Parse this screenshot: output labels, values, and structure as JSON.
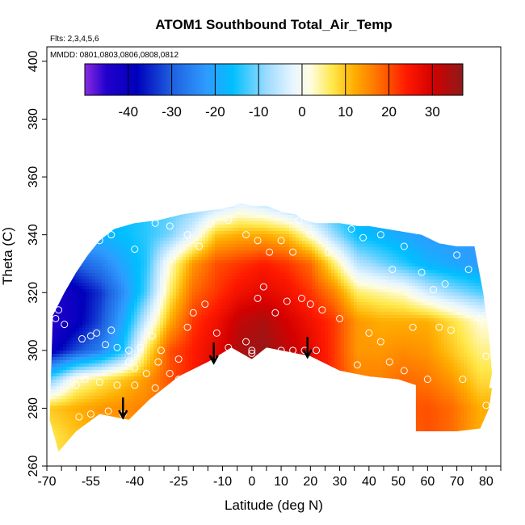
{
  "chart_data": {
    "type": "heatmap",
    "title": "ATOM1 Southbound Total_Air_Temp",
    "subtitle_flights": "Flts: 2,3,4,5,6",
    "subtitle_dates": "MMDD: 0801,0803,0806,0808,0812",
    "xlabel": "Latitude (deg N)",
    "ylabel": "Theta (C)",
    "xlim": [
      -70,
      85
    ],
    "ylim": [
      260,
      405
    ],
    "x_ticks": [
      -70,
      -55,
      -40,
      -25,
      -10,
      0,
      10,
      20,
      30,
      40,
      50,
      60,
      70,
      80
    ],
    "x_minor_ticks": [
      -65,
      -60,
      -50,
      -45,
      -35,
      -30,
      -20,
      -15,
      -5,
      5,
      15,
      25,
      35,
      45,
      55,
      65,
      75,
      85
    ],
    "y_ticks": [
      260,
      280,
      300,
      320,
      340,
      360,
      380,
      400
    ],
    "colorbar": {
      "range": [
        -50,
        37
      ],
      "ticks": [
        -40,
        -30,
        -20,
        -10,
        0,
        10,
        20,
        30
      ],
      "stops": [
        {
          "v": -50,
          "color": "#8a2be2"
        },
        {
          "v": -45,
          "color": "#2200cc"
        },
        {
          "v": -38,
          "color": "#0000bb"
        },
        {
          "v": -30,
          "color": "#1e60e0"
        },
        {
          "v": -22,
          "color": "#2e9bff"
        },
        {
          "v": -16,
          "color": "#00bfff"
        },
        {
          "v": -8,
          "color": "#9fdcff"
        },
        {
          "v": -2,
          "color": "#e8f6ff"
        },
        {
          "v": 2,
          "color": "#fffde0"
        },
        {
          "v": 7,
          "color": "#ffe84a"
        },
        {
          "v": 12,
          "color": "#ffae00"
        },
        {
          "v": 18,
          "color": "#ff6a00"
        },
        {
          "v": 24,
          "color": "#ff1a00"
        },
        {
          "v": 30,
          "color": "#d40000"
        },
        {
          "v": 37,
          "color": "#8e1a1a"
        }
      ]
    },
    "field": {
      "x_grid": [
        -68,
        -60,
        -52,
        -44,
        -36,
        -28,
        -20,
        -12,
        -4,
        4,
        12,
        20,
        28,
        36,
        44,
        52,
        60,
        68,
        78
      ],
      "y_grid": [
        270,
        280,
        290,
        300,
        310,
        320,
        330,
        340,
        350
      ],
      "values": [
        [
          7,
          10,
          12,
          13,
          14,
          16,
          18,
          20,
          22,
          22,
          20,
          18,
          16,
          15,
          16,
          18,
          20,
          18,
          12
        ],
        [
          10,
          12,
          14,
          15,
          16,
          18,
          22,
          26,
          30,
          32,
          30,
          26,
          20,
          16,
          17,
          19,
          20,
          18,
          12
        ],
        [
          -10,
          2,
          6,
          10,
          14,
          20,
          24,
          30,
          34,
          35,
          32,
          28,
          22,
          16,
          16,
          18,
          17,
          14,
          8
        ],
        [
          -40,
          -32,
          -26,
          -15,
          6,
          20,
          24,
          28,
          34,
          36,
          32,
          28,
          22,
          14,
          14,
          15,
          14,
          10,
          5
        ],
        [
          -45,
          -40,
          -32,
          -20,
          -4,
          12,
          22,
          26,
          32,
          34,
          30,
          26,
          22,
          14,
          12,
          12,
          12,
          8,
          2
        ],
        [
          -45,
          -40,
          -34,
          -24,
          -12,
          6,
          18,
          22,
          26,
          28,
          26,
          22,
          16,
          6,
          4,
          2,
          -4,
          -8,
          -12
        ],
        [
          -36,
          -30,
          -26,
          -20,
          -14,
          2,
          14,
          20,
          22,
          24,
          22,
          18,
          6,
          -6,
          -10,
          -14,
          -18,
          -20,
          -22
        ],
        [
          -20,
          -18,
          -18,
          -16,
          -14,
          -10,
          -2,
          10,
          12,
          12,
          10,
          2,
          -8,
          -16,
          -18,
          -20,
          -22,
          -22,
          -22
        ],
        [
          -20,
          -18,
          -18,
          -16,
          -14,
          -12,
          -10,
          -6,
          -2,
          -4,
          -8,
          -12,
          -16,
          -18,
          -20,
          -22,
          -22,
          -22,
          -22
        ]
      ],
      "boundary_upper": [
        [
          -68,
          312
        ],
        [
          -64,
          320
        ],
        [
          -60,
          327
        ],
        [
          -56,
          333
        ],
        [
          -52,
          338
        ],
        [
          -47,
          342
        ],
        [
          -40,
          344
        ],
        [
          -32,
          345
        ],
        [
          -24,
          347
        ],
        [
          -18,
          348
        ],
        [
          -10,
          349
        ],
        [
          -6,
          350
        ],
        [
          -4,
          351
        ],
        [
          0,
          350
        ],
        [
          5,
          350
        ],
        [
          10,
          348
        ],
        [
          15,
          347
        ],
        [
          18,
          345
        ],
        [
          22,
          344
        ],
        [
          30,
          344
        ],
        [
          36,
          343
        ],
        [
          40,
          343
        ],
        [
          46,
          342
        ],
        [
          52,
          341
        ],
        [
          58,
          340
        ],
        [
          64,
          337
        ],
        [
          70,
          336
        ],
        [
          76,
          336
        ],
        [
          79,
          320
        ],
        [
          81,
          305
        ],
        [
          82,
          292
        ],
        [
          81,
          287
        ]
      ],
      "boundary_lower": [
        [
          -69,
          276
        ],
        [
          -66,
          265
        ],
        [
          -60,
          272
        ],
        [
          -52,
          278
        ],
        [
          -42,
          276
        ],
        [
          -35,
          283
        ],
        [
          -25,
          291
        ],
        [
          -15,
          296
        ],
        [
          -7,
          301
        ],
        [
          0,
          297
        ],
        [
          5,
          301
        ],
        [
          20,
          298
        ],
        [
          30,
          293
        ],
        [
          40,
          291
        ],
        [
          50,
          290
        ],
        [
          56,
          288
        ],
        [
          56,
          272
        ],
        [
          63,
          272
        ],
        [
          70,
          272
        ],
        [
          78,
          273
        ],
        [
          81,
          280
        ],
        [
          82,
          287
        ]
      ]
    },
    "points": [
      [
        -67,
        311
      ],
      [
        -66,
        314
      ],
      [
        -64,
        309
      ],
      [
        -58,
        304
      ],
      [
        -55,
        305
      ],
      [
        -53,
        306
      ],
      [
        -50,
        302
      ],
      [
        -48,
        307
      ],
      [
        -46,
        301
      ],
      [
        -42,
        300
      ],
      [
        -40,
        294
      ],
      [
        -36,
        292
      ],
      [
        -32,
        296
      ],
      [
        -28,
        292
      ],
      [
        -25,
        290
      ],
      [
        -60,
        288
      ],
      [
        -57,
        290
      ],
      [
        -52,
        289
      ],
      [
        -46,
        288
      ],
      [
        -40,
        288
      ],
      [
        -33,
        287
      ],
      [
        -59,
        277
      ],
      [
        -55,
        278
      ],
      [
        -49,
        279
      ],
      [
        -44,
        278
      ],
      [
        -42,
        296
      ],
      [
        -38,
        301
      ],
      [
        -34,
        305
      ],
      [
        -31,
        300
      ],
      [
        -25,
        297
      ],
      [
        -22,
        308
      ],
      [
        -20,
        313
      ],
      [
        -16,
        316
      ],
      [
        -12,
        306
      ],
      [
        -8,
        301
      ],
      [
        -2,
        303
      ],
      [
        0,
        299
      ],
      [
        0,
        300
      ],
      [
        2,
        318
      ],
      [
        4,
        322
      ],
      [
        8,
        313
      ],
      [
        10,
        300
      ],
      [
        12,
        317
      ],
      [
        14,
        300
      ],
      [
        17,
        318
      ],
      [
        18,
        300
      ],
      [
        20,
        316
      ],
      [
        22,
        300
      ],
      [
        24,
        314
      ],
      [
        30,
        311
      ],
      [
        36,
        295
      ],
      [
        40,
        306
      ],
      [
        44,
        303
      ],
      [
        47,
        296
      ],
      [
        52,
        293
      ],
      [
        55,
        308
      ],
      [
        60,
        290
      ],
      [
        64,
        308
      ],
      [
        68,
        307
      ],
      [
        72,
        290
      ],
      [
        78,
        311
      ],
      [
        80,
        298
      ],
      [
        80,
        281
      ],
      [
        80,
        273
      ],
      [
        -52,
        338
      ],
      [
        -48,
        340
      ],
      [
        -40,
        335
      ],
      [
        -33,
        344
      ],
      [
        -28,
        343
      ],
      [
        -22,
        340
      ],
      [
        -18,
        336
      ],
      [
        -14,
        344
      ],
      [
        -8,
        345
      ],
      [
        -2,
        340
      ],
      [
        2,
        338
      ],
      [
        6,
        334
      ],
      [
        10,
        338
      ],
      [
        14,
        334
      ],
      [
        16,
        345
      ],
      [
        20,
        340
      ],
      [
        26,
        334
      ],
      [
        34,
        342
      ],
      [
        38,
        339
      ],
      [
        44,
        340
      ],
      [
        48,
        328
      ],
      [
        52,
        336
      ],
      [
        58,
        327
      ],
      [
        62,
        321
      ],
      [
        66,
        323
      ],
      [
        70,
        333
      ],
      [
        74,
        328
      ],
      [
        78,
        336
      ]
    ],
    "arrows": [
      -44,
      -13,
      19
    ],
    "arrow_tip_theta": [
      277,
      296,
      298
    ]
  }
}
